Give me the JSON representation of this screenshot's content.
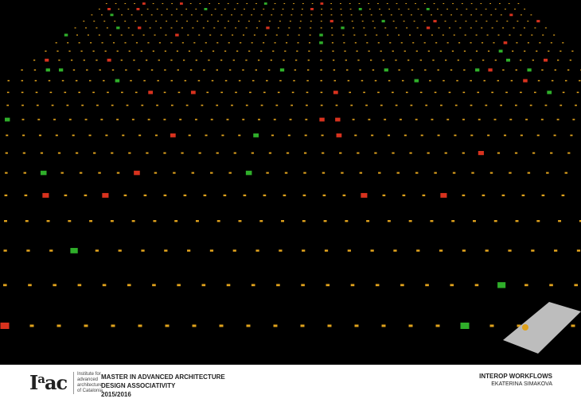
{
  "render": {
    "marker_color": "#e0a21c",
    "red_color": "#d8321e",
    "green_color": "#2fae2a",
    "background": "#000000"
  },
  "logo": {
    "text": "Iaac"
  },
  "institute": {
    "lines": [
      "Institute for",
      "advanced",
      "architecture",
      "of Catalonia"
    ]
  },
  "course": {
    "line1": "MASTER IN ADVANCED ARCHITECTURE",
    "line2": "DESIGN ASSOCIATIVITY",
    "line3": "2015/2016"
  },
  "project": {
    "title": "INTEROP WORKFLOWS",
    "author": "EKATERINA SIMAKOVA"
  }
}
